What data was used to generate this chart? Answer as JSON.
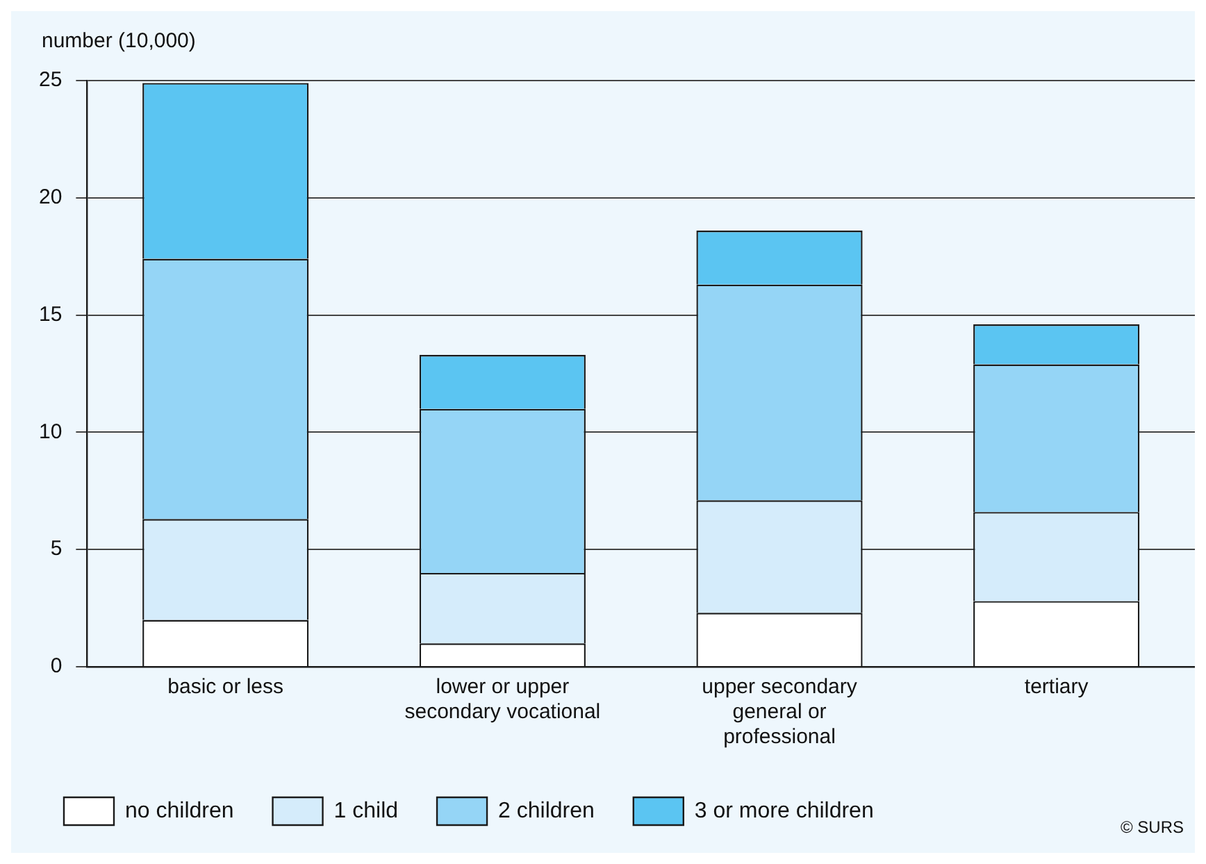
{
  "chart_data": {
    "type": "bar",
    "stacked": true,
    "ylabel": "number (10,000)",
    "categories": [
      "basic or less",
      "lower or upper secondary vocational",
      "upper secondary general or professional",
      "tertiary"
    ],
    "series": [
      {
        "name": "no children",
        "color": "#ffffff",
        "values": [
          2.0,
          1.0,
          2.3,
          2.8
        ]
      },
      {
        "name": "1 child",
        "color": "#d5ecfb",
        "values": [
          4.3,
          3.0,
          4.8,
          3.8
        ]
      },
      {
        "name": "2 children",
        "color": "#95d5f6",
        "values": [
          11.1,
          7.0,
          9.2,
          6.3
        ]
      },
      {
        "name": "3 or more children",
        "color": "#5bc5f2",
        "values": [
          7.5,
          2.3,
          2.3,
          1.7
        ]
      }
    ],
    "ylim": [
      0,
      25
    ],
    "yticks": [
      0,
      5,
      10,
      15,
      20,
      25
    ],
    "grid": "y",
    "legend": "bottom",
    "annotations": [
      "© SURS"
    ]
  }
}
